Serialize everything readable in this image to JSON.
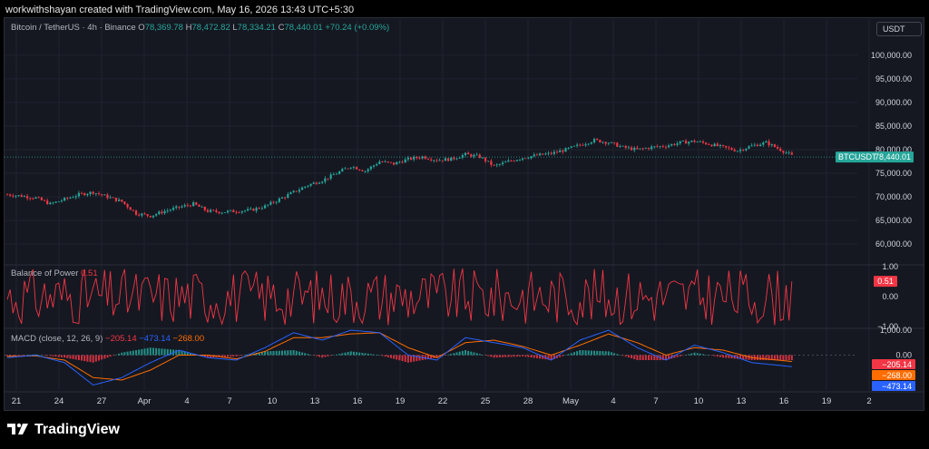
{
  "credit": "workwithshayan created with TradingView.com, May 16, 2026 13:43 UTC+5:30",
  "legend": {
    "symbol": "Bitcoin / TetherUS · 4h · Binance",
    "o_label": "O",
    "o": "78,369.78",
    "h_label": "H",
    "h": "78,472.82",
    "l_label": "L",
    "l": "78,334.21",
    "c_label": "C",
    "c": "78,440.01",
    "change": "+70.24 (+0.09%)"
  },
  "currency_button": "USDT",
  "bop_legend": {
    "name": "Balance of Power",
    "value": "0.51"
  },
  "macd_legend": {
    "name": "MACD (close, 12, 26, 9)",
    "hist": "−205.14",
    "macd": "−473.14",
    "signal": "−268.00"
  },
  "price_tag": {
    "symbol": "BTCUSDT",
    "value": "78,440.01"
  },
  "bop_tag": "0.51",
  "macd_tags": {
    "hist": "−205.14",
    "signal": "−268.00",
    "macd": "−473.14"
  },
  "logo_text": "TradingView",
  "colors": {
    "up": "#26a69a",
    "down": "#f23645",
    "macd": "#2962ff",
    "signal": "#ff6d00",
    "bop": "#f23645",
    "bg": "#151821"
  },
  "chart_data": [
    {
      "type": "candlestick",
      "title": "Bitcoin / TetherUS · 4h · Binance",
      "ylim": [
        56000,
        104000
      ],
      "yticks": [
        "100,000.00",
        "95,000.00",
        "90,000.00",
        "85,000.00",
        "80,000.00",
        "75,000.00",
        "70,000.00",
        "65,000.00",
        "60,000.00"
      ],
      "xticks": [
        "21",
        "24",
        "27",
        "Apr",
        "4",
        "7",
        "10",
        "13",
        "16",
        "19",
        "22",
        "25",
        "28",
        "May",
        "4",
        "7",
        "10",
        "13",
        "16",
        "19",
        "2"
      ],
      "close_path": [
        [
          0,
          70500
        ],
        [
          5,
          70200
        ],
        [
          10,
          69800
        ],
        [
          15,
          68500
        ],
        [
          20,
          69500
        ],
        [
          25,
          70500
        ],
        [
          30,
          71000
        ],
        [
          35,
          70000
        ],
        [
          40,
          69000
        ],
        [
          45,
          66500
        ],
        [
          50,
          66000
        ],
        [
          55,
          67000
        ],
        [
          60,
          67800
        ],
        [
          65,
          68500
        ],
        [
          70,
          67000
        ],
        [
          75,
          66800
        ],
        [
          80,
          67000
        ],
        [
          85,
          67200
        ],
        [
          90,
          68000
        ],
        [
          95,
          69500
        ],
        [
          100,
          71000
        ],
        [
          105,
          72500
        ],
        [
          110,
          73500
        ],
        [
          115,
          75000
        ],
        [
          120,
          76500
        ],
        [
          125,
          75500
        ],
        [
          130,
          77500
        ],
        [
          135,
          77000
        ],
        [
          140,
          78000
        ],
        [
          145,
          78500
        ],
        [
          150,
          77800
        ],
        [
          155,
          78000
        ],
        [
          160,
          79000
        ],
        [
          165,
          78500
        ],
        [
          170,
          76500
        ],
        [
          175,
          77500
        ],
        [
          180,
          78300
        ],
        [
          185,
          78800
        ],
        [
          190,
          79200
        ],
        [
          195,
          80000
        ],
        [
          200,
          81000
        ],
        [
          205,
          82000
        ],
        [
          210,
          81500
        ],
        [
          215,
          80500
        ],
        [
          220,
          80000
        ],
        [
          225,
          80500
        ],
        [
          230,
          80800
        ],
        [
          235,
          81500
        ],
        [
          240,
          81800
        ],
        [
          245,
          81200
        ],
        [
          250,
          80500
        ],
        [
          255,
          79800
        ],
        [
          260,
          80800
        ],
        [
          265,
          81500
        ],
        [
          270,
          80000
        ],
        [
          275,
          78440
        ]
      ],
      "n_candles": 275,
      "last": 78440.01
    },
    {
      "type": "line",
      "title": "Balance of Power",
      "ylim": [
        -1.0,
        1.0
      ],
      "yticks": [
        "1.00",
        "0.00",
        "−1.00"
      ],
      "last": 0.51,
      "range": [
        -0.95,
        0.95
      ]
    },
    {
      "type": "bar+line",
      "title": "MACD (close, 12, 26, 9)",
      "ylim": [
        -1400,
        1000
      ],
      "yticks": [
        "1,000.00",
        "0.00"
      ],
      "macd_path": [
        [
          0,
          -100
        ],
        [
          10,
          0
        ],
        [
          20,
          -300
        ],
        [
          30,
          -1200
        ],
        [
          40,
          -900
        ],
        [
          50,
          -300
        ],
        [
          60,
          200
        ],
        [
          70,
          -100
        ],
        [
          80,
          -200
        ],
        [
          90,
          300
        ],
        [
          100,
          900
        ],
        [
          110,
          600
        ],
        [
          120,
          1000
        ],
        [
          130,
          900
        ],
        [
          140,
          0
        ],
        [
          150,
          -200
        ],
        [
          160,
          700
        ],
        [
          170,
          500
        ],
        [
          180,
          300
        ],
        [
          190,
          -200
        ],
        [
          200,
          600
        ],
        [
          210,
          1000
        ],
        [
          220,
          300
        ],
        [
          230,
          -200
        ],
        [
          240,
          400
        ],
        [
          250,
          100
        ],
        [
          260,
          -300
        ],
        [
          275,
          -473
        ]
      ],
      "signal_path": [
        [
          0,
          -50
        ],
        [
          10,
          -30
        ],
        [
          20,
          -200
        ],
        [
          30,
          -900
        ],
        [
          40,
          -1000
        ],
        [
          50,
          -600
        ],
        [
          60,
          0
        ],
        [
          70,
          0
        ],
        [
          80,
          -150
        ],
        [
          90,
          150
        ],
        [
          100,
          700
        ],
        [
          110,
          700
        ],
        [
          120,
          850
        ],
        [
          130,
          900
        ],
        [
          140,
          300
        ],
        [
          150,
          -100
        ],
        [
          160,
          500
        ],
        [
          170,
          600
        ],
        [
          180,
          350
        ],
        [
          190,
          0
        ],
        [
          200,
          400
        ],
        [
          210,
          850
        ],
        [
          220,
          500
        ],
        [
          230,
          0
        ],
        [
          240,
          300
        ],
        [
          250,
          200
        ],
        [
          260,
          -100
        ],
        [
          275,
          -268
        ]
      ],
      "last": {
        "hist": -205.14,
        "macd": -473.14,
        "signal": -268.0
      }
    }
  ]
}
